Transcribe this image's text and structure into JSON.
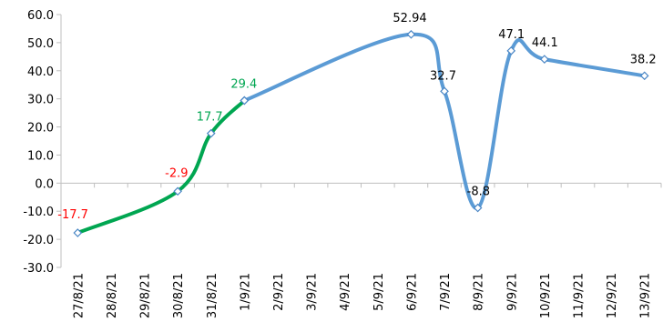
{
  "chart_data": {
    "type": "line",
    "categories": [
      "27/8/21",
      "28/8/21",
      "29/8/21",
      "30/8/21",
      "31/8/21",
      "1/9/21",
      "2/9/21",
      "3/9/21",
      "4/9/21",
      "5/9/21",
      "6/9/21",
      "7/9/21",
      "8/9/21",
      "9/9/21",
      "10/9/21",
      "11/9/21",
      "12/9/21",
      "13/9/21"
    ],
    "ylim": [
      -30,
      60
    ],
    "yticks": [
      "-30.0",
      "-20.0",
      "-10.0",
      "0.0",
      "10.0",
      "20.0",
      "30.0",
      "40.0",
      "50.0",
      "60.0"
    ],
    "grid": false,
    "legend": "none",
    "series": [
      {
        "color": "#00a651",
        "points": [
          {
            "x": "27/8/21",
            "y": -17.7
          },
          {
            "x": "30/8/21",
            "y": -2.9
          },
          {
            "x": "31/8/21",
            "y": 17.7
          },
          {
            "x": "1/9/21",
            "y": 29.4
          }
        ]
      },
      {
        "color": "#5b9bd5",
        "points": [
          {
            "x": "1/9/21",
            "y": 29.4
          },
          {
            "x": "6/9/21",
            "y": 52.94
          },
          {
            "x": "7/9/21",
            "y": 32.7
          },
          {
            "x": "8/9/21",
            "y": -8.8
          },
          {
            "x": "9/9/21",
            "y": 47.1
          },
          {
            "x": "10/9/21",
            "y": 44.1
          },
          {
            "x": "13/9/21",
            "y": 38.2
          }
        ]
      }
    ],
    "data_labels": [
      {
        "x": "27/8/21",
        "y": -17.7,
        "text": "-17.7",
        "color": "#ff0000"
      },
      {
        "x": "30/8/21",
        "y": -2.9,
        "text": "-2.9",
        "color": "#ff0000"
      },
      {
        "x": "31/8/21",
        "y": 17.7,
        "text": "17.7",
        "color": "#00a651"
      },
      {
        "x": "1/9/21",
        "y": 29.4,
        "text": "29.4",
        "color": "#00a651"
      },
      {
        "x": "6/9/21",
        "y": 52.94,
        "text": "52.94",
        "color": "#000000"
      },
      {
        "x": "7/9/21",
        "y": 32.7,
        "text": "32.7",
        "color": "#000000"
      },
      {
        "x": "8/9/21",
        "y": -8.8,
        "text": "-8.8",
        "color": "#000000"
      },
      {
        "x": "9/9/21",
        "y": 47.1,
        "text": "47.1",
        "color": "#000000"
      },
      {
        "x": "10/9/21",
        "y": 44.1,
        "text": "44.1",
        "color": "#000000"
      },
      {
        "x": "13/9/21",
        "y": 38.2,
        "text": "38.2",
        "color": "#000000"
      }
    ]
  }
}
